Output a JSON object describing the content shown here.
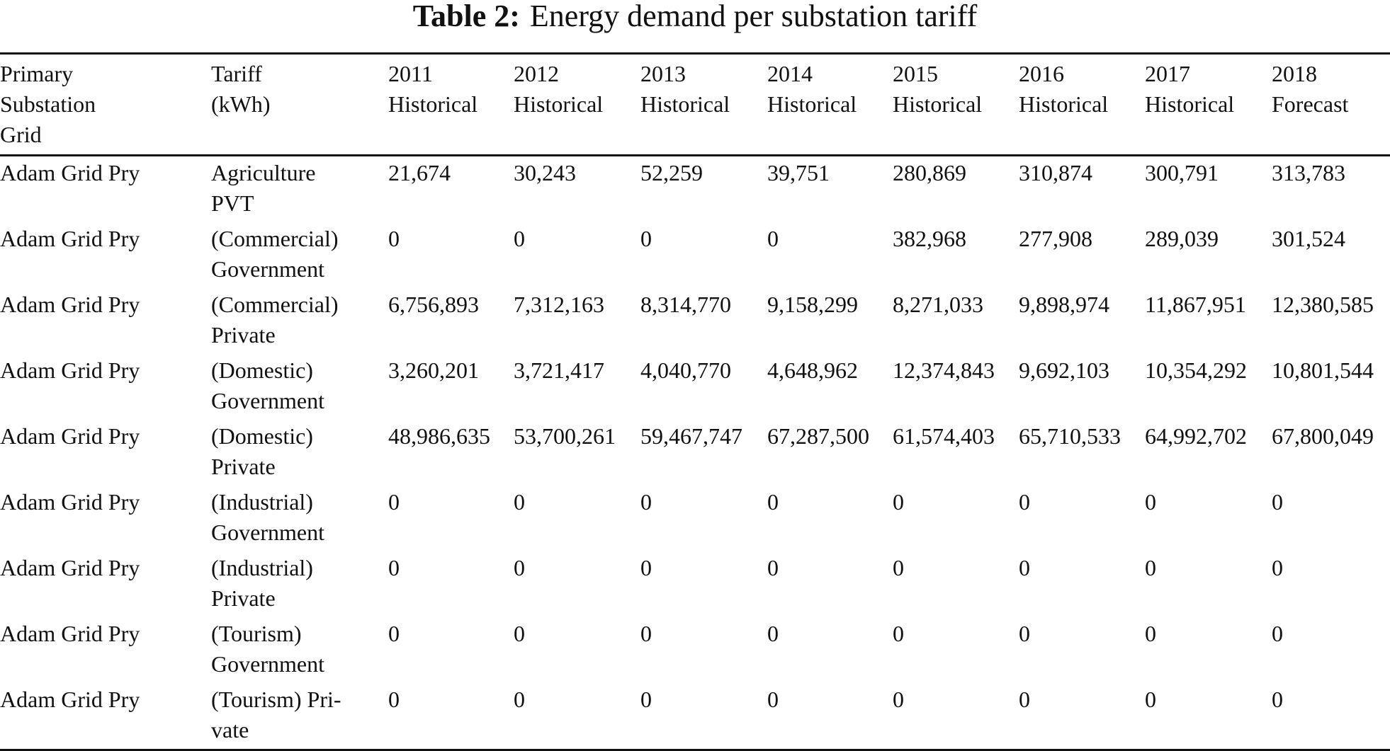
{
  "title": {
    "label": "Table 2:",
    "text": "Energy demand per substation tariff"
  },
  "table": {
    "header": [
      "Primary\nSubstation\nGrid",
      "Tariff\n(kWh)",
      "2011\nHistorical",
      "2012\nHistorical",
      "2013\nHistorical",
      "2014\nHistorical",
      "2015\nHistorical",
      "2016\nHistorical",
      "2017\nHistorical",
      "2018\nForecast"
    ],
    "rows": [
      [
        "Adam Grid Pry",
        "Agriculture\nPVT",
        "21,674",
        "30,243",
        "52,259",
        "39,751",
        "280,869",
        "310,874",
        "300,791",
        "313,783"
      ],
      [
        "Adam Grid Pry",
        "(Commercial)\nGovernment",
        "0",
        "0",
        "0",
        "0",
        "382,968",
        "277,908",
        "289,039",
        "301,524"
      ],
      [
        "Adam Grid Pry",
        "(Commercial)\nPrivate",
        "6,756,893",
        "7,312,163",
        "8,314,770",
        "9,158,299",
        "8,271,033",
        "9,898,974",
        "11,867,951",
        "12,380,585"
      ],
      [
        "Adam Grid Pry",
        "(Domestic)\nGovernment",
        "3,260,201",
        "3,721,417",
        "4,040,770",
        "4,648,962",
        "12,374,843",
        "9,692,103",
        "10,354,292",
        "10,801,544"
      ],
      [
        "Adam Grid Pry",
        "(Domestic)\nPrivate",
        "48,986,635",
        "53,700,261",
        "59,467,747",
        "67,287,500",
        "61,574,403",
        "65,710,533",
        "64,992,702",
        "67,800,049"
      ],
      [
        "Adam Grid Pry",
        "(Industrial)\nGovernment",
        "0",
        "0",
        "0",
        "0",
        "0",
        "0",
        "0",
        "0"
      ],
      [
        "Adam Grid Pry",
        "(Industrial)\nPrivate",
        "0",
        "0",
        "0",
        "0",
        "0",
        "0",
        "0",
        "0"
      ],
      [
        "Adam Grid Pry",
        "(Tourism)\nGovernment",
        "0",
        "0",
        "0",
        "0",
        "0",
        "0",
        "0",
        "0"
      ],
      [
        "Adam Grid Pry",
        "(Tourism) Pri-\nvate",
        "0",
        "0",
        "0",
        "0",
        "0",
        "0",
        "0",
        "0"
      ]
    ]
  }
}
